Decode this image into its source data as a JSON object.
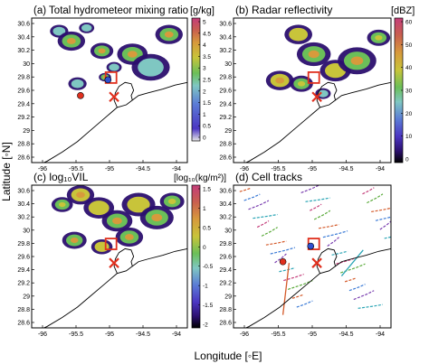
{
  "figure": {
    "xlabel": "Longitude [◦E]",
    "ylabel": "Latitude [◦N]"
  },
  "panels": [
    {
      "id": "a",
      "title": "(a) Total hydrometeor mixing ratio",
      "unit": "[g/kg]",
      "colorbar_ticks": [
        "5",
        "4.5",
        "4",
        "3.5",
        "3",
        "2.5",
        "2",
        "1.5",
        "1",
        "0.5",
        "0"
      ]
    },
    {
      "id": "b",
      "title": "(b) Radar reflectivity",
      "unit": "[dBZ]",
      "colorbar_ticks": [
        "60",
        "50",
        "40",
        "30",
        "20",
        "10",
        "0"
      ]
    },
    {
      "id": "c",
      "title": "(c) log₁₀VIL",
      "unit": "[log₁₀(kg/m²)]",
      "colorbar_ticks": [
        "1.5",
        "1",
        "0.5",
        "0",
        "-0.5",
        "-1",
        "-1.5",
        "-2"
      ]
    },
    {
      "id": "d",
      "title": "(d) Cell tracks",
      "unit": "",
      "colorbar_ticks": []
    }
  ],
  "axes": {
    "lat_ticks": [
      "30.6",
      "30.4",
      "30.2",
      "30",
      "29.8",
      "29.6",
      "29.4",
      "29.2",
      "29",
      "28.8",
      "28.6"
    ],
    "lon_ticks": [
      "-96",
      "-95.5",
      "-95",
      "-94.5",
      "-94"
    ]
  },
  "colors": {
    "colormap": [
      "#000000",
      "#2b0f6e",
      "#4b35c2",
      "#5b7cd6",
      "#7fc7c2",
      "#6bbf59",
      "#c8c43a",
      "#d79a3c",
      "#c9604e",
      "#c43d7a",
      "#e0e0e0"
    ]
  }
}
